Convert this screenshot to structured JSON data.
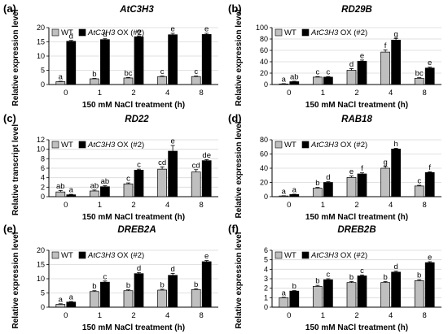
{
  "figure": {
    "legend_wt": "WT",
    "legend_ox_gene": "AtC3H3",
    "legend_ox_suffix": " OX (#2)",
    "colors": {
      "wt": "#bfbfbf",
      "ox": "#000000",
      "axis": "#000000",
      "grid": "#d9d9d9"
    }
  },
  "chart_data": [
    {
      "panel": "(a)",
      "title": "AtC3H3",
      "type": "bar",
      "categories": [
        "0",
        "1",
        "2",
        "4",
        "8"
      ],
      "xlabel": "150 mM NaCl treatment (h)",
      "ylabel": "Relative expression level",
      "ylim": [
        0,
        20
      ],
      "yticks": [
        0,
        5,
        10,
        15,
        20
      ],
      "series": [
        {
          "name": "WT",
          "values": [
            1,
            2,
            2.3,
            2.8,
            2.8
          ],
          "errors": [
            0.15,
            0.15,
            0.2,
            0.2,
            0.2
          ],
          "letters": [
            "a",
            "b",
            "bc",
            "c",
            "c"
          ]
        },
        {
          "name": "AtC3H3 OX (#2)",
          "values": [
            15.2,
            15.8,
            16.8,
            17.5,
            17.6
          ],
          "errors": [
            0.3,
            0.3,
            0.3,
            0.5,
            0.4
          ],
          "letters": [
            "d",
            "d",
            "e",
            "e",
            "e"
          ]
        }
      ]
    },
    {
      "panel": "(b)",
      "title": "RD29B",
      "type": "bar",
      "categories": [
        "0",
        "1",
        "2",
        "4",
        "8"
      ],
      "xlabel": "150 mM NaCl treatment (h)",
      "ylabel": "Relative expression level",
      "ylim": [
        0,
        100
      ],
      "yticks": [
        0,
        20,
        40,
        60,
        80,
        100
      ],
      "series": [
        {
          "name": "WT",
          "values": [
            1,
            13,
            25,
            57,
            11
          ],
          "errors": [
            0.5,
            1,
            3,
            4,
            1
          ],
          "letters": [
            "a",
            "c",
            "d",
            "f",
            "bc"
          ]
        },
        {
          "name": "AtC3H3 OX (#2)",
          "values": [
            5,
            13,
            41,
            78,
            29
          ],
          "errors": [
            0.8,
            1,
            2,
            3,
            1.5
          ],
          "letters": [
            "ab",
            "c",
            "e",
            "g",
            "e"
          ]
        }
      ]
    },
    {
      "panel": "(c)",
      "title": "RD22",
      "type": "bar",
      "categories": [
        "0",
        "1",
        "2",
        "4",
        "8"
      ],
      "xlabel": "150 mM NaCl treatment (h)",
      "ylabel": "Relative transcript level",
      "ylim": [
        0,
        12
      ],
      "yticks": [
        0,
        2,
        4,
        6,
        8,
        10,
        12
      ],
      "series": [
        {
          "name": "WT",
          "values": [
            1,
            1.2,
            2.7,
            5.8,
            5.2
          ],
          "errors": [
            0.3,
            0.2,
            0.2,
            0.5,
            0.5
          ],
          "letters": [
            "ab",
            "ab",
            "c",
            "cd",
            "cd"
          ]
        },
        {
          "name": "AtC3H3 OX (#2)",
          "values": [
            0.4,
            2.1,
            5.6,
            9.6,
            7.6
          ],
          "errors": [
            0.1,
            0.2,
            0.2,
            1.2,
            0.2
          ],
          "letters": [
            "a",
            "ab",
            "c",
            "e",
            "de"
          ]
        }
      ]
    },
    {
      "panel": "(d)",
      "title": "RAB18",
      "type": "bar",
      "categories": [
        "0",
        "1",
        "2",
        "4",
        "8"
      ],
      "xlabel": "150 mM NaCl treatment (h)",
      "ylabel": "Relative expression level",
      "ylim": [
        0,
        80
      ],
      "yticks": [
        0,
        20,
        40,
        60,
        80
      ],
      "series": [
        {
          "name": "WT",
          "values": [
            1,
            12,
            27,
            40,
            15
          ],
          "errors": [
            0.3,
            1,
            2,
            2.5,
            1
          ],
          "letters": [
            "a",
            "b",
            "e",
            "g",
            "c"
          ]
        },
        {
          "name": "AtC3H3 OX (#2)",
          "values": [
            3,
            20,
            32,
            67,
            34
          ],
          "errors": [
            0.5,
            1,
            1.5,
            1,
            1
          ],
          "letters": [
            "a",
            "d",
            "f",
            "h",
            "f"
          ]
        }
      ]
    },
    {
      "panel": "(e)",
      "title": "DREB2A",
      "type": "bar",
      "categories": [
        "0",
        "1",
        "2",
        "4",
        "8"
      ],
      "xlabel": "150 mM NaCl treatment (h)",
      "ylabel": "Relative expression level",
      "ylim": [
        0,
        20
      ],
      "yticks": [
        0,
        5,
        10,
        15,
        20
      ],
      "series": [
        {
          "name": "WT",
          "values": [
            1,
            5.5,
            5.8,
            6,
            6.2
          ],
          "errors": [
            0.2,
            0.3,
            0.3,
            0.3,
            0.3
          ],
          "letters": [
            "a",
            "b",
            "b",
            "b",
            "b"
          ]
        },
        {
          "name": "AtC3H3 OX (#2)",
          "values": [
            1.8,
            8.8,
            11.8,
            11.2,
            16
          ],
          "errors": [
            0.2,
            0.4,
            0.4,
            0.7,
            0.4
          ],
          "letters": [
            "a",
            "c",
            "d",
            "d",
            "e"
          ]
        }
      ]
    },
    {
      "panel": "(f)",
      "title": "DREB2B",
      "type": "bar",
      "categories": [
        "0",
        "1",
        "2",
        "4",
        "8"
      ],
      "xlabel": "150 mM NaCl treatment (h)",
      "ylabel": "Relative expression level",
      "ylim": [
        0,
        6
      ],
      "yticks": [
        0,
        1,
        2,
        3,
        4,
        5,
        6
      ],
      "series": [
        {
          "name": "WT",
          "values": [
            1,
            2.2,
            2.6,
            2.6,
            2.8
          ],
          "errors": [
            0.05,
            0.1,
            0.1,
            0.1,
            0.1
          ],
          "letters": [
            "a",
            "b",
            "b",
            "b",
            "b"
          ]
        },
        {
          "name": "AtC3H3 OX (#2)",
          "values": [
            1.7,
            2.9,
            3.3,
            3.7,
            4.7
          ],
          "errors": [
            0.05,
            0.1,
            0.1,
            0.1,
            0.1
          ],
          "letters": [
            "b",
            "c",
            "c",
            "d",
            "e"
          ]
        }
      ]
    }
  ]
}
